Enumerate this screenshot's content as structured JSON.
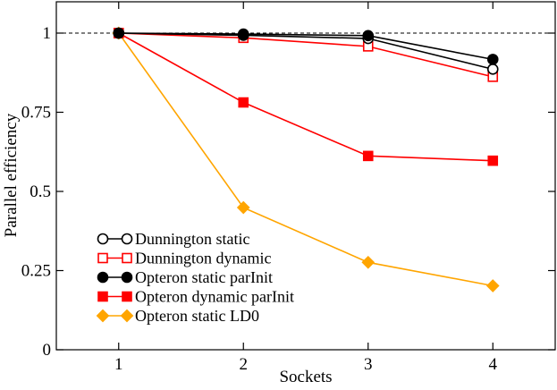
{
  "chart_data": {
    "type": "line",
    "xlabel": "Sockets",
    "ylabel": "Parallel efficiency",
    "xlim": [
      0.5,
      4.5
    ],
    "ylim": [
      0,
      1.0
    ],
    "x_ticks": [
      1,
      2,
      3,
      4
    ],
    "x_tick_labels": [
      "1",
      "2",
      "3",
      "4"
    ],
    "y_ticks": [
      0,
      0.25,
      0.5,
      0.75,
      1
    ],
    "y_tick_labels": [
      "0",
      "0.25",
      "0.5",
      "0.75",
      "1"
    ],
    "reference_line": {
      "y": 1,
      "style": "dashed"
    },
    "legend_placement": "bottom-left",
    "grid": false,
    "x": [
      1,
      2,
      3,
      4
    ],
    "series": [
      {
        "name": "Dunnington static",
        "values": [
          1.0,
          0.993,
          0.983,
          0.886
        ],
        "color": "#000000",
        "marker": "circle",
        "filled": false
      },
      {
        "name": "Dunnington dynamic",
        "values": [
          1.0,
          0.985,
          0.958,
          0.862
        ],
        "color": "#ff0000",
        "marker": "square",
        "filled": false
      },
      {
        "name": "Opteron static parInit",
        "values": [
          1.0,
          0.997,
          0.992,
          0.917
        ],
        "color": "#000000",
        "marker": "circle",
        "filled": true
      },
      {
        "name": "Opteron dynamic parInit",
        "values": [
          1.0,
          0.781,
          0.612,
          0.597
        ],
        "color": "#ff0000",
        "marker": "square",
        "filled": true
      },
      {
        "name": "Opteron static LD0",
        "values": [
          1.0,
          0.449,
          0.276,
          0.202
        ],
        "color": "#ffa500",
        "marker": "diamond",
        "filled": true
      }
    ]
  }
}
